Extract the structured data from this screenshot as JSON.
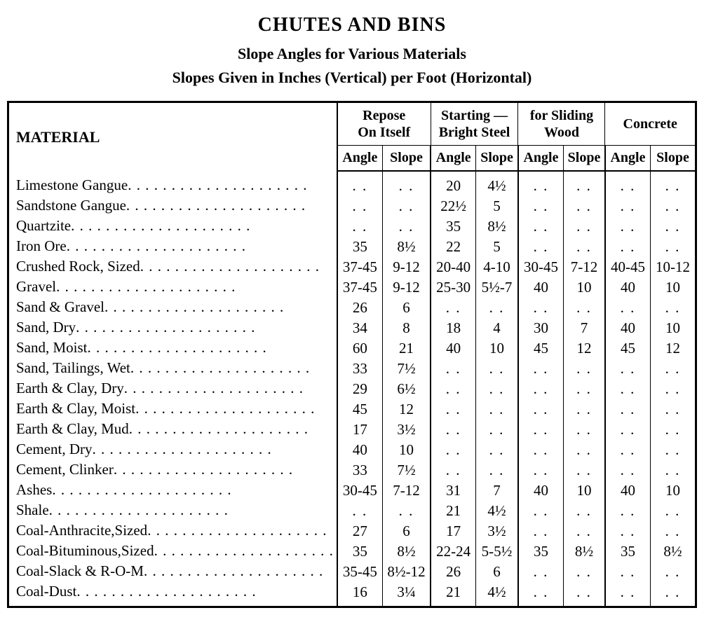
{
  "title": {
    "main": "CHUTES AND BINS",
    "sub1": "Slope Angles for Various Materials",
    "sub2": "Slopes Given in Inches (Vertical) per Foot (Horizontal)"
  },
  "headers": {
    "material": "MATERIAL",
    "group1_line1": "Repose",
    "group1_line2": "On Itself",
    "group2_line1": "Starting —",
    "group2_line2": "Bright Steel",
    "group3_line1": "for Sliding",
    "group3_line2": "Wood",
    "group4": "Concrete",
    "angle": "Angle",
    "slope": "Slope"
  },
  "rows": [
    {
      "m": "Limestone Gangue",
      "r": [
        "..",
        "..",
        "20",
        "4½",
        "..",
        "..",
        "..",
        ".."
      ]
    },
    {
      "m": "Sandstone Gangue",
      "r": [
        "..",
        "..",
        "22½",
        "5",
        "..",
        "..",
        "..",
        ".."
      ]
    },
    {
      "m": "Quartzite",
      "r": [
        "..",
        "..",
        "35",
        "8½",
        "..",
        "..",
        "..",
        ".."
      ]
    },
    {
      "m": "Iron Ore",
      "r": [
        "35",
        "8½",
        "22",
        "5",
        "..",
        "..",
        "..",
        ".."
      ]
    },
    {
      "m": "Crushed Rock, Sized",
      "r": [
        "37-45",
        "9-12",
        "20-40",
        "4-10",
        "30-45",
        "7-12",
        "40-45",
        "10-12"
      ]
    },
    {
      "m": "Gravel",
      "r": [
        "37-45",
        "9-12",
        "25-30",
        "5½-7",
        "40",
        "10",
        "40",
        "10"
      ]
    },
    {
      "m": "Sand & Gravel",
      "r": [
        "26",
        "6",
        "..",
        "..",
        "..",
        "..",
        "..",
        ".."
      ]
    },
    {
      "m": "Sand, Dry",
      "r": [
        "34",
        "8",
        "18",
        "4",
        "30",
        "7",
        "40",
        "10"
      ]
    },
    {
      "m": "Sand, Moist",
      "r": [
        "60",
        "21",
        "40",
        "10",
        "45",
        "12",
        "45",
        "12"
      ]
    },
    {
      "m": "Sand, Tailings, Wet",
      "r": [
        "33",
        "7½",
        "..",
        "..",
        "..",
        "..",
        "..",
        ".."
      ]
    },
    {
      "m": "Earth & Clay, Dry",
      "r": [
        "29",
        "6½",
        "..",
        "..",
        "..",
        "..",
        "..",
        ".."
      ]
    },
    {
      "m": "Earth & Clay, Moist",
      "r": [
        "45",
        "12",
        "..",
        "..",
        "..",
        "..",
        "..",
        ".."
      ]
    },
    {
      "m": "Earth & Clay, Mud",
      "r": [
        "17",
        "3½",
        "..",
        "..",
        "..",
        "..",
        "..",
        ".."
      ]
    },
    {
      "m": "Cement, Dry",
      "r": [
        "40",
        "10",
        "..",
        "..",
        "..",
        "..",
        "..",
        ".."
      ]
    },
    {
      "m": "Cement, Clinker",
      "r": [
        "33",
        "7½",
        "..",
        "..",
        "..",
        "..",
        "..",
        ".."
      ]
    },
    {
      "m": "Ashes",
      "r": [
        "30-45",
        "7-12",
        "31",
        "7",
        "40",
        "10",
        "40",
        "10"
      ]
    },
    {
      "m": "Shale",
      "r": [
        "..",
        "..",
        "21",
        "4½",
        "..",
        "..",
        "..",
        ".."
      ]
    },
    {
      "m": "Coal-Anthracite,Sized",
      "r": [
        "27",
        "6",
        "17",
        "3½",
        "..",
        "..",
        "..",
        ".."
      ]
    },
    {
      "m": "Coal-Bituminous,Sized",
      "r": [
        "35",
        "8½",
        "22-24",
        "5-5½",
        "35",
        "8½",
        "35",
        "8½"
      ]
    },
    {
      "m": "Coal-Slack & R-O-M",
      "r": [
        "35-45",
        "8½-12",
        "26",
        "6",
        "..",
        "..",
        "..",
        ".."
      ]
    },
    {
      "m": "Coal-Dust",
      "r": [
        "16",
        "3¼",
        "21",
        "4½",
        "..",
        "..",
        "..",
        ".."
      ]
    }
  ],
  "style": {
    "font_family": "Times New Roman",
    "title_main_fontsize": 28,
    "title_sub_fontsize": 22,
    "table_fontsize": 21,
    "header_fontsize": 20,
    "border_color": "#000000",
    "outer_border_width": 3,
    "inner_border_width": 1,
    "section_border_width": 2,
    "background_color": "#ffffff",
    "text_color": "#000000",
    "col_material_width": 270,
    "col_data_width": 89
  }
}
